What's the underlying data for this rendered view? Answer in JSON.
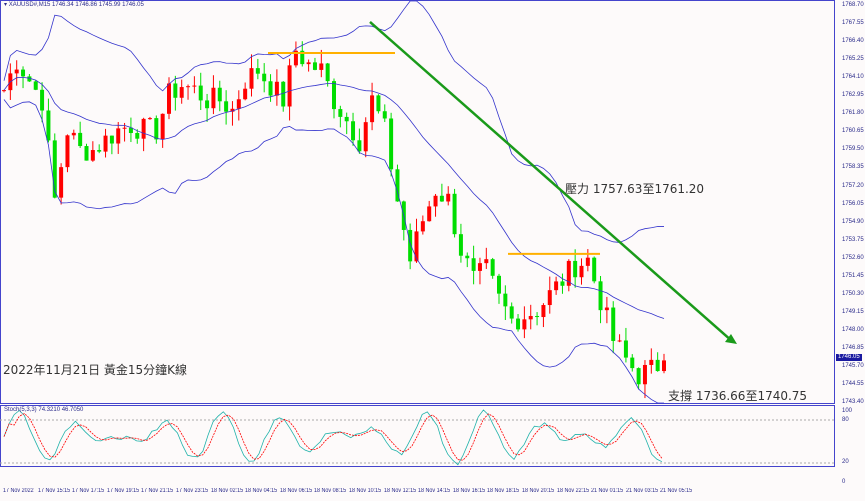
{
  "header": {
    "symbol": "XAUUSD#,M15",
    "ohlc": "1746.34 1746.86 1745.99 1746.05"
  },
  "annotations": {
    "resistance": "壓力 1757.63至1761.20",
    "support": "支撐 1736.66至1740.75",
    "caption": "2022年11月21日 黃金15分鐘K線"
  },
  "stoch": {
    "label": "Stoch(5,3,3) 74.3210 46.7050",
    "levels": [
      "100",
      "80",
      "20",
      "0"
    ],
    "main_color": "#20b2aa",
    "signal_color": "#ff0000"
  },
  "price_axis": [
    "1768.70",
    "1767.55",
    "1766.40",
    "1765.25",
    "1764.10",
    "1762.95",
    "1761.80",
    "1760.65",
    "1759.50",
    "1758.35",
    "1757.20",
    "1756.05",
    "1754.90",
    "1753.75",
    "1752.60",
    "1751.45",
    "1750.30",
    "1749.15",
    "1748.00",
    "1746.85",
    "1745.70",
    "1744.55",
    "1743.40"
  ],
  "current_price": "1746.05",
  "time_axis": [
    "17 Nov 2022",
    "17 Nov 15:15",
    "17 Nov 17:15",
    "17 Nov 19:15",
    "17 Nov 21:15",
    "17 Nov 23:15",
    "18 Nov 02:15",
    "18 Nov 04:15",
    "18 Nov 06:15",
    "18 Nov 08:15",
    "18 Nov 10:15",
    "18 Nov 12:15",
    "18 Nov 14:15",
    "18 Nov 16:15",
    "18 Nov 18:15",
    "18 Nov 20:15",
    "18 Nov 22:15",
    "21 Nov 01:15",
    "21 Nov 03:15",
    "21 Nov 05:15"
  ],
  "chart_data": {
    "type": "candlestick",
    "title": "",
    "ylim": [
      1743.4,
      1768.7
    ],
    "colors": {
      "up": "#ff0000",
      "down": "#00dd00",
      "bollinger": "#3333cc",
      "trendline": "#1a9a1a",
      "level": "#ffb000"
    },
    "close_path": [
      1763.29,
      1765.2,
      1763.92,
      1762.65,
      1756.28,
      1760.74,
      1759.46,
      1759.46,
      1760.1,
      1760.74,
      1761.06,
      1760.74,
      1760.74,
      1762.97,
      1763.6,
      1763.29,
      1762.65,
      1762.65,
      1762.01,
      1763.92,
      1764.56,
      1763.6,
      1762.65,
      1765.83,
      1764.88,
      1764.56,
      1762.65,
      1761.37,
      1760.1,
      1762.65,
      1760.74,
      1756.28,
      1752.46,
      1755.0,
      1756.92,
      1756.28,
      1753.09,
      1751.18,
      1751.82,
      1749.91,
      1748.63,
      1748.95,
      1749.27,
      1750.23,
      1751.18,
      1752.14,
      1752.46,
      1749.91,
      1747.36,
      1746.09,
      1745.13,
      1745.45,
      1746.05
    ],
    "resistance_level": 1765.64,
    "support_level": 1752.84,
    "trendline": {
      "from": 1767.62,
      "to": 1747.23
    }
  }
}
